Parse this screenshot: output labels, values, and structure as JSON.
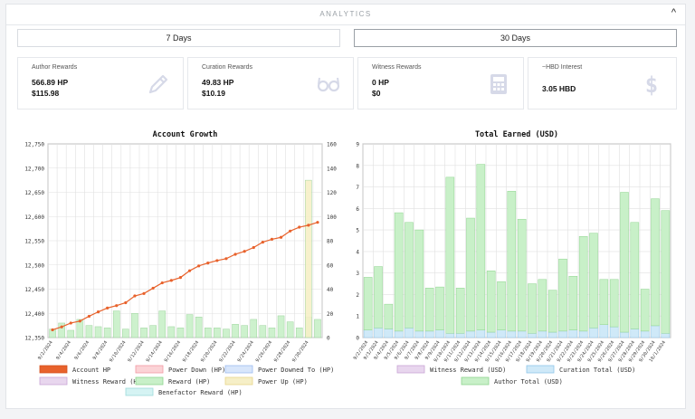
{
  "header": {
    "title": "ANALYTICS",
    "collapse_icon": "chevron-up-icon"
  },
  "tabs": [
    {
      "label": "7 Days",
      "active": false
    },
    {
      "label": "30 Days",
      "active": true
    }
  ],
  "cards": [
    {
      "title": "Author Rewards",
      "value1": "566.89 HP",
      "value2": "$115.98",
      "icon": "pencil-icon"
    },
    {
      "title": "Curation Rewards",
      "value1": "49.83 HP",
      "value2": "$10.19",
      "icon": "glasses-icon"
    },
    {
      "title": "Witness Rewards",
      "value1": "0 HP",
      "value2": "$0",
      "icon": "calculator-icon"
    },
    {
      "title": "~HBD Interest",
      "value1": "3.05 HBD",
      "value2": "",
      "icon": "dollar-icon"
    }
  ],
  "colors": {
    "accent_orange": "#e8622c",
    "reward_green": "#c8f0c8",
    "curation_blue": "#cfe9f8",
    "power_up": "#f6efc7"
  },
  "chart_data": [
    {
      "type": "line",
      "title": "Account Growth",
      "x": [
        "9/2/2024",
        "9/3/2024",
        "9/4/2024",
        "9/5/2024",
        "9/6/2024",
        "9/7/2024",
        "9/8/2024",
        "9/9/2024",
        "9/10/2024",
        "9/11/2024",
        "9/12/2024",
        "9/13/2024",
        "9/14/2024",
        "9/15/2024",
        "9/16/2024",
        "9/17/2024",
        "9/18/2024",
        "9/19/2024",
        "9/20/2024",
        "9/21/2024",
        "9/22/2024",
        "9/23/2024",
        "9/24/2024",
        "9/25/2024",
        "9/26/2024",
        "9/27/2024",
        "9/28/2024",
        "9/29/2024",
        "9/30/2024",
        "10/1/2024"
      ],
      "x_tick_labels": [
        "9/2/2024",
        "9/4/2024",
        "9/6/2024",
        "9/8/2024",
        "9/10/2024",
        "9/12/2024",
        "9/14/2024",
        "9/16/2024",
        "9/18/2024",
        "9/20/2024",
        "9/22/2024",
        "9/24/2024",
        "9/26/2024",
        "9/28/2024",
        "9/30/2024"
      ],
      "y_left_ticks": [
        "12,750",
        "12,700",
        "12,650",
        "12,600",
        "12,550",
        "12,500",
        "12,450",
        "12,400",
        "12,350"
      ],
      "y_right_ticks": [
        "160",
        "140",
        "120",
        "100",
        "80",
        "60",
        "40",
        "20",
        "0"
      ],
      "ylim_left": [
        12350,
        12750
      ],
      "ylim_right": [
        0,
        160
      ],
      "series": [
        {
          "name": "Account HP",
          "axis": "left",
          "kind": "line",
          "color": "#e8622c",
          "values": [
            12366,
            12372,
            12380,
            12384,
            12394,
            12403,
            12411,
            12416,
            12422,
            12436,
            12441,
            12452,
            12463,
            12468,
            12474,
            12488,
            12498,
            12504,
            12509,
            12513,
            12522,
            12528,
            12536,
            12547,
            12553,
            12557,
            12570,
            12578,
            12582,
            12588
          ]
        },
        {
          "name": "Reward (HP)",
          "axis": "right",
          "kind": "bar",
          "color": "#c8f0c8",
          "values": [
            7,
            12,
            6,
            15,
            10,
            9,
            8,
            22,
            7,
            20,
            8,
            10,
            22,
            9,
            8,
            19,
            17,
            8,
            8,
            7,
            11,
            10,
            15,
            10,
            8,
            18,
            13,
            8,
            17,
            15
          ]
        },
        {
          "name": "Power Up (HP)",
          "axis": "right",
          "kind": "bar",
          "color": "#f6efc7",
          "values": [
            0,
            0,
            0,
            0,
            0,
            0,
            0,
            0,
            0,
            0,
            0,
            0,
            0,
            0,
            0,
            0,
            0,
            0,
            0,
            0,
            0,
            0,
            0,
            0,
            0,
            0,
            0,
            0,
            130,
            0
          ]
        }
      ],
      "legend": [
        {
          "name": "Account HP",
          "color": "#e8622c",
          "border": "#d4511f"
        },
        {
          "name": "Power Down (HP)",
          "color": "#fbd3d6",
          "border": "#f29aa3"
        },
        {
          "name": "Power Downed To (HP)",
          "color": "#d8e6fb",
          "border": "#9dbcf0"
        },
        {
          "name": "Witness Reward (HP)",
          "color": "#e8d6ee",
          "border": "#c9a6d6"
        },
        {
          "name": "Reward (HP)",
          "color": "#c8f0c8",
          "border": "#8fd48f"
        },
        {
          "name": "Power Up (HP)",
          "color": "#f6efc7",
          "border": "#e6d58a"
        },
        {
          "name": "Benefactor Reward (HP)",
          "color": "#d5f3f3",
          "border": "#9ddada"
        }
      ],
      "grid": true,
      "legend_position": "bottom"
    },
    {
      "type": "bar",
      "title": "Total Earned (USD)",
      "categories": [
        "9/2/2024",
        "9/3/2024",
        "9/4/2024",
        "9/5/2024",
        "9/6/2024",
        "9/7/2024",
        "9/8/2024",
        "9/9/2024",
        "9/10/2024",
        "9/11/2024",
        "9/12/2024",
        "9/13/2024",
        "9/14/2024",
        "9/15/2024",
        "9/16/2024",
        "9/17/2024",
        "9/18/2024",
        "9/19/2024",
        "9/20/2024",
        "9/21/2024",
        "9/22/2024",
        "9/23/2024",
        "9/24/2024",
        "9/25/2024",
        "9/26/2024",
        "9/27/2024",
        "9/28/2024",
        "9/29/2024",
        "9/30/2024",
        "10/1/2024"
      ],
      "y_ticks": [
        "9",
        "8",
        "7",
        "6",
        "5",
        "4",
        "3",
        "2",
        "1",
        "0"
      ],
      "ylim": [
        0,
        9
      ],
      "stacked": true,
      "series": [
        {
          "name": "Curation Total (USD)",
          "color": "#cfe9f8",
          "values": [
            0.35,
            0.45,
            0.4,
            0.3,
            0.45,
            0.3,
            0.3,
            0.35,
            0.2,
            0.2,
            0.3,
            0.35,
            0.25,
            0.35,
            0.3,
            0.3,
            0.2,
            0.3,
            0.25,
            0.3,
            0.35,
            0.3,
            0.45,
            0.6,
            0.5,
            0.25,
            0.4,
            0.3,
            0.55,
            0.2
          ]
        },
        {
          "name": "Author Total (USD)",
          "color": "#c8f0c8",
          "values": [
            2.45,
            2.85,
            1.15,
            5.5,
            4.9,
            4.7,
            2.0,
            2.0,
            7.25,
            2.1,
            5.25,
            7.7,
            2.85,
            2.25,
            6.5,
            5.2,
            2.3,
            2.4,
            1.95,
            3.35,
            2.5,
            4.4,
            4.4,
            2.1,
            2.2,
            6.5,
            4.95,
            1.95,
            5.9,
            5.7
          ]
        }
      ],
      "legend": [
        {
          "name": "Witness Reward (USD)",
          "color": "#e8d6ee",
          "border": "#c9a6d6"
        },
        {
          "name": "Curation Total (USD)",
          "color": "#cfe9f8",
          "border": "#8fc6e8"
        },
        {
          "name": "Author Total (USD)",
          "color": "#c8f0c8",
          "border": "#8fd48f"
        }
      ],
      "grid": true,
      "legend_position": "bottom"
    }
  ]
}
